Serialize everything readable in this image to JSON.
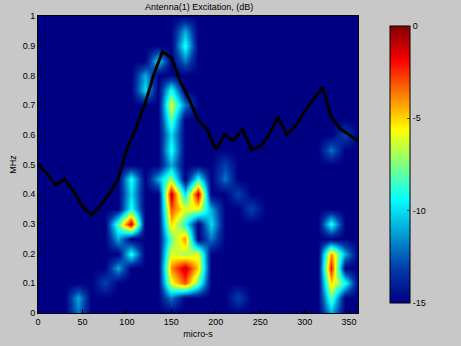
{
  "chart_data": {
    "type": "heatmap",
    "title": "Antenna(1) Excitation, (dB)",
    "x_label": "micro-s",
    "y_label": "MHz",
    "xlim": [
      0,
      360
    ],
    "ylim": [
      0,
      1
    ],
    "xticks": [
      0,
      50,
      100,
      150,
      200,
      250,
      300,
      350
    ],
    "yticks": [
      0,
      0.1,
      0.2,
      0.3,
      0.4,
      0.5,
      0.6,
      0.7,
      0.8,
      0.9,
      1
    ],
    "grid": false,
    "cells": {
      "x": [
        0,
        15,
        30,
        45,
        60,
        75,
        90,
        105,
        120,
        135,
        150,
        165,
        180,
        195,
        210,
        225,
        240,
        255,
        270,
        285,
        300,
        315,
        330,
        345,
        360
      ],
      "y": [
        0,
        0.05,
        0.1,
        0.15,
        0.2,
        0.25,
        0.3,
        0.35,
        0.4,
        0.45,
        0.5,
        0.55,
        0.6,
        0.65,
        0.7,
        0.75,
        0.8,
        0.85,
        0.9,
        0.95,
        1
      ],
      "values": [
        [
          -15,
          -15,
          -15,
          -12,
          -15,
          -15,
          -15,
          -15,
          -15,
          -15,
          -15,
          -15,
          -15,
          -15,
          -15,
          -15,
          -15,
          -15,
          -15,
          -15,
          -15,
          -15,
          -11,
          -15,
          -15
        ],
        [
          -15,
          -15,
          -15,
          -11,
          -15,
          -15,
          -15,
          -15,
          -15,
          -15,
          -12,
          -15,
          -15,
          -15,
          -15,
          -13,
          -15,
          -15,
          -15,
          -15,
          -15,
          -15,
          -8,
          -15,
          -15
        ],
        [
          -15,
          -15,
          -15,
          -15,
          -15,
          -13,
          -15,
          -15,
          -15,
          -15,
          -6,
          -3,
          -8,
          -15,
          -15,
          -15,
          -15,
          -15,
          -15,
          -15,
          -15,
          -15,
          -5,
          -9,
          -15
        ],
        [
          -15,
          -15,
          -15,
          -15,
          -15,
          -15,
          -11,
          -15,
          -15,
          -15,
          -4,
          -1,
          -5,
          -15,
          -15,
          -15,
          -15,
          -15,
          -15,
          -15,
          -15,
          -15,
          -2,
          -15,
          -15
        ],
        [
          -15,
          -15,
          -15,
          -15,
          -15,
          -15,
          -15,
          -9,
          -15,
          -15,
          -6,
          -7,
          -6,
          -15,
          -15,
          -15,
          -15,
          -15,
          -15,
          -15,
          -15,
          -15,
          -4,
          -11,
          -15
        ],
        [
          -15,
          -15,
          -15,
          -15,
          -15,
          -15,
          -11,
          -15,
          -15,
          -15,
          -8,
          -4,
          -15,
          -12,
          -15,
          -15,
          -15,
          -15,
          -15,
          -15,
          -15,
          -15,
          -15,
          -15,
          -15
        ],
        [
          -15,
          -15,
          -15,
          -15,
          -15,
          -15,
          -8,
          -1,
          -15,
          -15,
          -5,
          -9,
          -15,
          -10,
          -15,
          -15,
          -15,
          -15,
          -15,
          -15,
          -15,
          -15,
          -9,
          -15,
          -15
        ],
        [
          -15,
          -15,
          -15,
          -15,
          -15,
          -15,
          -15,
          -9,
          -15,
          -15,
          -3,
          -6,
          -6,
          -11,
          -15,
          -15,
          -13,
          -15,
          -15,
          -15,
          -15,
          -15,
          -15,
          -15,
          -15
        ],
        [
          -15,
          -15,
          -15,
          -15,
          -15,
          -15,
          -15,
          -10,
          -15,
          -15,
          -1,
          -10,
          -1,
          -15,
          -15,
          -13,
          -15,
          -15,
          -15,
          -15,
          -15,
          -15,
          -15,
          -15,
          -15
        ],
        [
          -15,
          -15,
          -15,
          -15,
          -15,
          -15,
          -15,
          -9,
          -15,
          -11,
          -7,
          -15,
          -9,
          -15,
          -12,
          -15,
          -15,
          -15,
          -15,
          -15,
          -15,
          -15,
          -15,
          -15,
          -15
        ],
        [
          -15,
          -15,
          -15,
          -15,
          -15,
          -15,
          -15,
          -15,
          -15,
          -15,
          -11,
          -15,
          -15,
          -15,
          -13,
          -15,
          -15,
          -15,
          -15,
          -15,
          -15,
          -15,
          -15,
          -15,
          -15
        ],
        [
          -15,
          -15,
          -15,
          -15,
          -15,
          -15,
          -15,
          -15,
          -15,
          -15,
          -9,
          -15,
          -15,
          -15,
          -15,
          -15,
          -15,
          -15,
          -15,
          -15,
          -15,
          -15,
          -12,
          -15,
          -15
        ],
        [
          -15,
          -15,
          -15,
          -15,
          -15,
          -15,
          -15,
          -15,
          -15,
          -15,
          -10,
          -15,
          -15,
          -15,
          -15,
          -15,
          -15,
          -15,
          -15,
          -15,
          -15,
          -15,
          -15,
          -13,
          -15
        ],
        [
          -15,
          -15,
          -15,
          -15,
          -15,
          -15,
          -15,
          -15,
          -15,
          -15,
          -8,
          -15,
          -15,
          -15,
          -15,
          -15,
          -15,
          -15,
          -15,
          -15,
          -15,
          -15,
          -15,
          -15,
          -15
        ],
        [
          -15,
          -15,
          -15,
          -15,
          -15,
          -15,
          -15,
          -15,
          -15,
          -15,
          -6,
          -12,
          -15,
          -15,
          -15,
          -15,
          -15,
          -15,
          -15,
          -15,
          -15,
          -15,
          -15,
          -15,
          -15
        ],
        [
          -15,
          -15,
          -15,
          -15,
          -15,
          -15,
          -15,
          -15,
          -10,
          -15,
          -9,
          -15,
          -15,
          -15,
          -15,
          -15,
          -15,
          -15,
          -15,
          -15,
          -15,
          -15,
          -15,
          -15,
          -15
        ],
        [
          -15,
          -15,
          -15,
          -15,
          -15,
          -15,
          -15,
          -15,
          -11,
          -15,
          -15,
          -15,
          -15,
          -15,
          -15,
          -15,
          -15,
          -15,
          -15,
          -15,
          -15,
          -15,
          -15,
          -15,
          -15
        ],
        [
          -15,
          -15,
          -15,
          -15,
          -15,
          -15,
          -15,
          -15,
          -15,
          -10,
          -15,
          -12,
          -15,
          -15,
          -15,
          -15,
          -15,
          -15,
          -15,
          -15,
          -15,
          -15,
          -15,
          -15,
          -15
        ],
        [
          -15,
          -15,
          -15,
          -15,
          -15,
          -15,
          -15,
          -15,
          -15,
          -15,
          -15,
          -9,
          -15,
          -15,
          -15,
          -15,
          -15,
          -15,
          -15,
          -15,
          -15,
          -15,
          -15,
          -15,
          -15
        ],
        [
          -15,
          -15,
          -15,
          -15,
          -15,
          -15,
          -15,
          -15,
          -15,
          -15,
          -15,
          -11,
          -15,
          -15,
          -15,
          -15,
          -15,
          -15,
          -15,
          -15,
          -15,
          -15,
          -15,
          -15,
          -15
        ],
        [
          -15,
          -15,
          -15,
          -15,
          -15,
          -15,
          -15,
          -15,
          -15,
          -15,
          -15,
          -15,
          -15,
          -15,
          -15,
          -15,
          -15,
          -15,
          -15,
          -15,
          -15,
          -15,
          -15,
          -15,
          -15
        ]
      ]
    },
    "colorbar": {
      "range": [
        -15,
        0
      ],
      "ticks": [
        0,
        -5,
        -10,
        -15
      ]
    },
    "series": [
      {
        "type": "line",
        "color": "#000000",
        "x": [
          0,
          10,
          20,
          30,
          40,
          50,
          60,
          70,
          80,
          90,
          100,
          110,
          120,
          130,
          140,
          150,
          160,
          170,
          180,
          190,
          200,
          210,
          220,
          230,
          240,
          250,
          260,
          270,
          280,
          290,
          300,
          310,
          320,
          330,
          340,
          350,
          360
        ],
        "values": [
          0.5,
          0.47,
          0.43,
          0.45,
          0.41,
          0.36,
          0.33,
          0.36,
          0.4,
          0.45,
          0.55,
          0.62,
          0.7,
          0.8,
          0.88,
          0.86,
          0.78,
          0.72,
          0.65,
          0.62,
          0.55,
          0.6,
          0.58,
          0.62,
          0.55,
          0.56,
          0.6,
          0.66,
          0.6,
          0.63,
          0.68,
          0.72,
          0.76,
          0.66,
          0.62,
          0.6,
          0.58
        ]
      }
    ]
  }
}
